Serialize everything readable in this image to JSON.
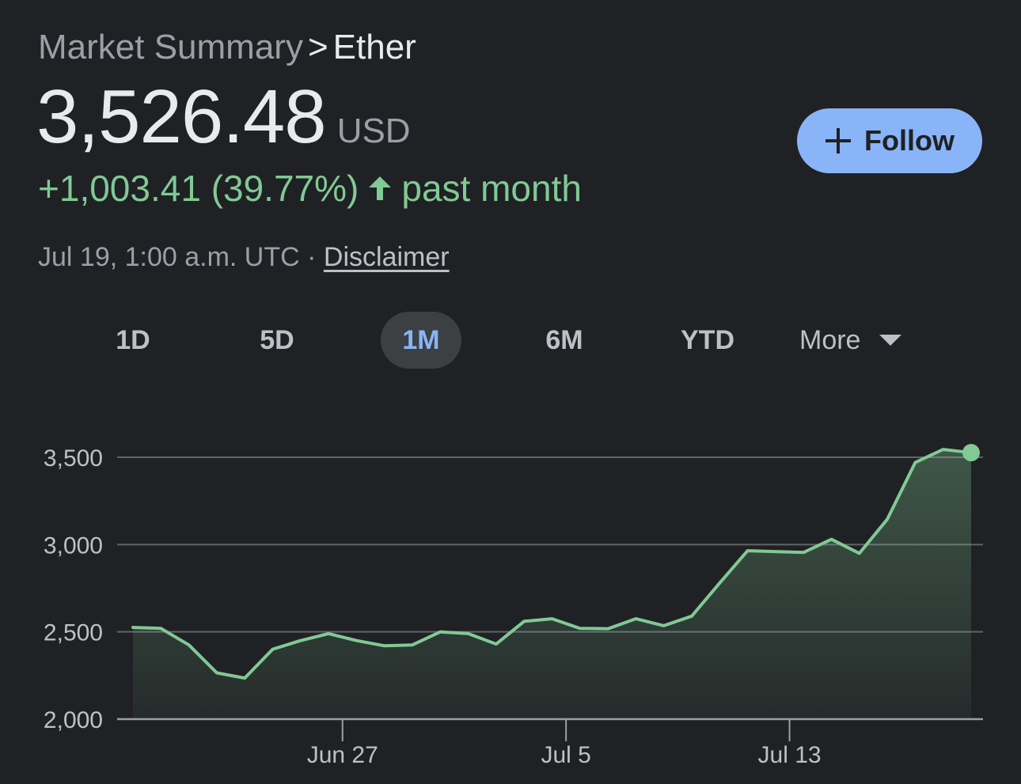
{
  "breadcrumb": {
    "root": "Market Summary",
    "separator": ">",
    "current": "Ether"
  },
  "quote": {
    "price": "3,526.48",
    "currency": "USD",
    "change_text": "+1,003.41 (39.77%)",
    "period": "past month",
    "timestamp": "Jul 19, 1:00 a.m. UTC ·",
    "disclaimer": "Disclaimer"
  },
  "follow_button": {
    "label": "Follow",
    "icon": "plus-icon"
  },
  "range_tabs": [
    {
      "label": "1D",
      "active": false
    },
    {
      "label": "5D",
      "active": false
    },
    {
      "label": "1M",
      "active": true
    },
    {
      "label": "6M",
      "active": false
    },
    {
      "label": "YTD",
      "active": false
    }
  ],
  "more_menu": {
    "label": "More",
    "icon": "caret-down-icon"
  },
  "colors": {
    "background": "#202124",
    "positive": "#81c995",
    "accent": "#8ab4f8",
    "gridline": "#5f6368"
  },
  "chart_data": {
    "type": "area",
    "y_ticks": [
      2000,
      2500,
      3000,
      3500
    ],
    "y_tick_labels": [
      "2,000",
      "2,500",
      "3,000",
      "3,500"
    ],
    "ylim": [
      2000,
      3500
    ],
    "x_tick_labels": [
      {
        "label": "Jun 27",
        "day": 9
      },
      {
        "label": "Jul 5",
        "day": 17
      },
      {
        "label": "Jul 13",
        "day": 25
      }
    ],
    "x_range_days": [
      1.5,
      31.5
    ],
    "grid": true,
    "series": [
      {
        "x_days": [
          1.5,
          2.5,
          3.5,
          4.5,
          5.5,
          6.5,
          7.5,
          8.5,
          9.5,
          10.5,
          11.5,
          12.5,
          13.5,
          14.5,
          15.5,
          16.5,
          17.5,
          18.5,
          19.5,
          20.5,
          21.5,
          22.5,
          23.5,
          24.5,
          25.5,
          26.5,
          27.5,
          28.5,
          29.5,
          30.5,
          31.5
        ],
        "values": [
          2525,
          2520,
          2425,
          2265,
          2235,
          2400,
          2450,
          2490,
          2450,
          2420,
          2425,
          2500,
          2490,
          2430,
          2560,
          2575,
          2520,
          2518,
          2575,
          2535,
          2590,
          2780,
          2965,
          2960,
          2955,
          3030,
          2950,
          3145,
          3470,
          3545,
          3526.48
        ]
      }
    ]
  }
}
